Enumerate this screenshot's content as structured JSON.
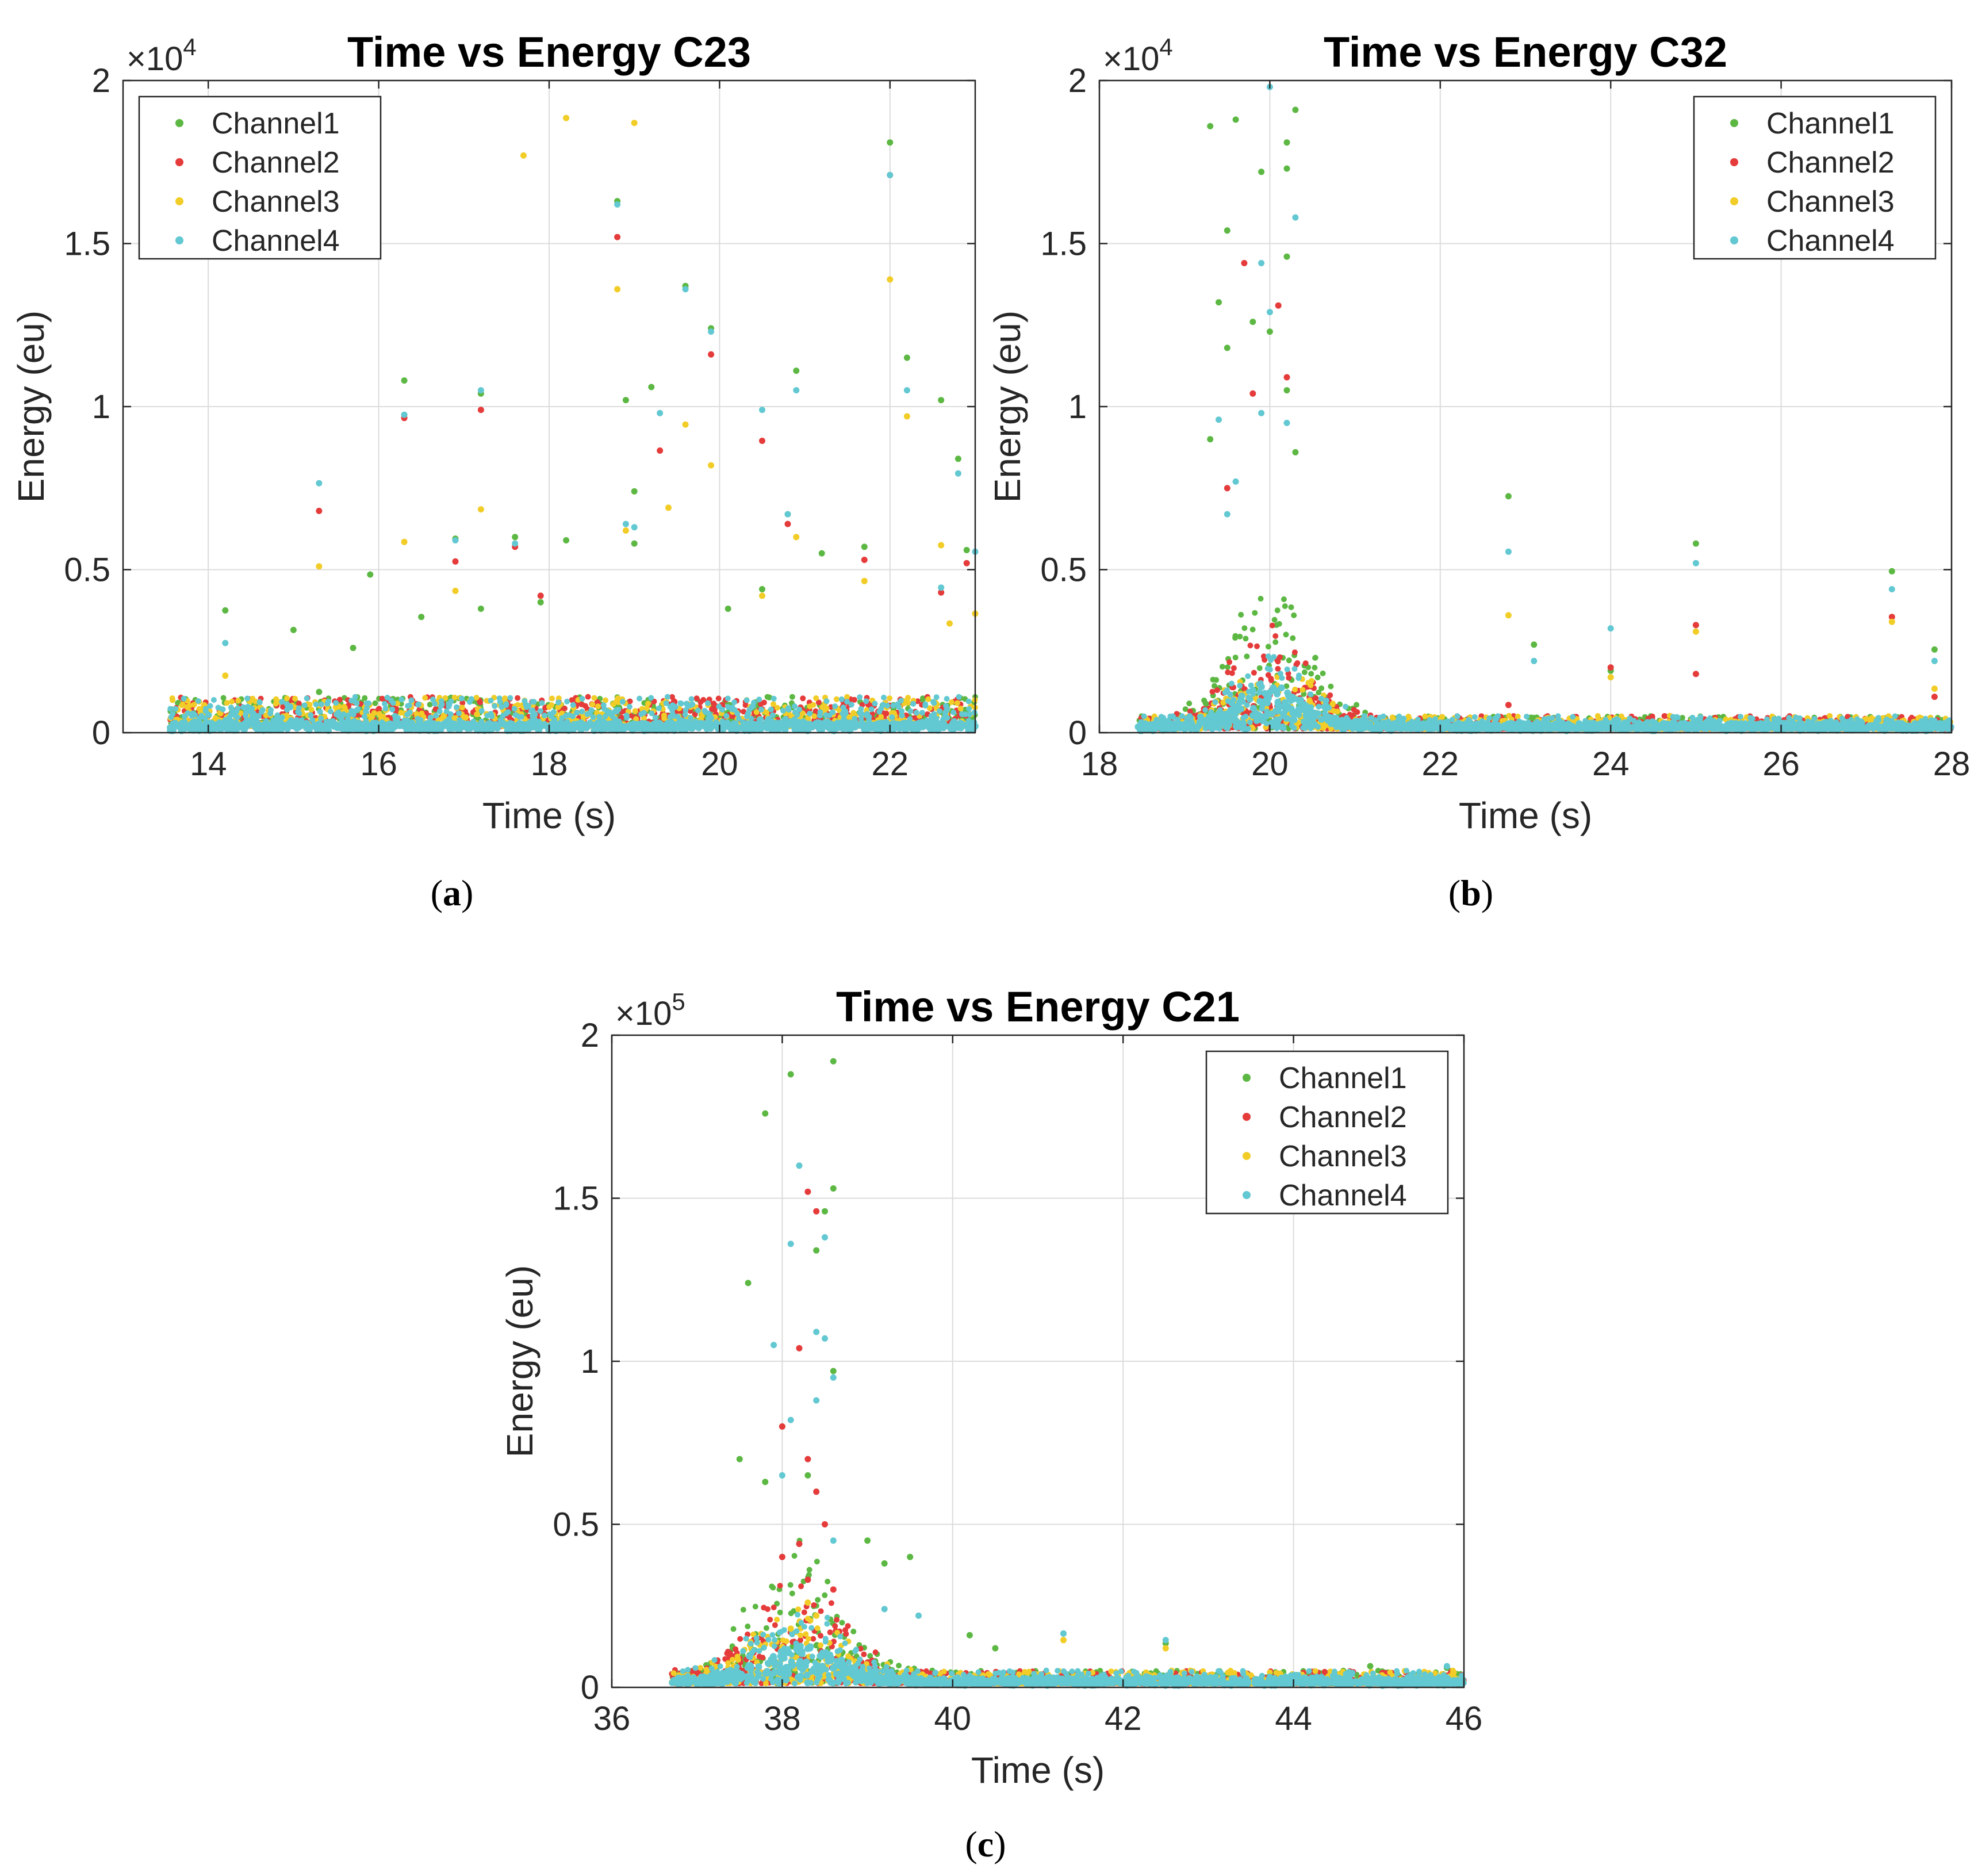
{
  "figure": {
    "panels": [
      {
        "id": "a",
        "caption": "(a)",
        "caption_letter": "a",
        "exponent_label": "×10",
        "exponent_power": "4"
      },
      {
        "id": "b",
        "caption": "(b)",
        "caption_letter": "b",
        "exponent_label": "×10",
        "exponent_power": "4"
      },
      {
        "id": "c",
        "caption": "(c)",
        "caption_letter": "c",
        "exponent_label": "×10",
        "exponent_power": "5"
      }
    ]
  },
  "chart_data": [
    {
      "type": "scatter",
      "title": "Time vs Energy C23",
      "xlabel": "Time (s)",
      "ylabel": "Energy (eu)",
      "xlim": [
        13,
        23
      ],
      "ylim": [
        0,
        20000
      ],
      "xticks": [
        14,
        16,
        18,
        20,
        22
      ],
      "xtick_labels": [
        "14",
        "16",
        "18",
        "20",
        "22"
      ],
      "yticks": [
        0,
        5000,
        10000,
        15000,
        20000
      ],
      "ytick_labels": [
        "0",
        "0.5",
        "1",
        "1.5",
        "2"
      ],
      "y_multiplier": "×10^4",
      "grid": true,
      "legend_position": "top-left",
      "series": [
        {
          "name": "Channel1",
          "color": "#5cb843",
          "points": [
            [
              14.2,
              3750
            ],
            [
              15.0,
              3150
            ],
            [
              15.3,
              1250
            ],
            [
              15.7,
              2600
            ],
            [
              15.9,
              4850
            ],
            [
              16.3,
              10800
            ],
            [
              16.5,
              3550
            ],
            [
              16.9,
              5950
            ],
            [
              17.2,
              3800
            ],
            [
              17.2,
              10400
            ],
            [
              17.6,
              6000
            ],
            [
              17.9,
              4000
            ],
            [
              18.2,
              5900
            ],
            [
              18.8,
              16300
            ],
            [
              18.9,
              10200
            ],
            [
              19.0,
              7400
            ],
            [
              19.0,
              5800
            ],
            [
              19.2,
              10600
            ],
            [
              19.6,
              13700
            ],
            [
              19.9,
              12400
            ],
            [
              20.1,
              3800
            ],
            [
              20.5,
              4400
            ],
            [
              20.8,
              6700
            ],
            [
              20.9,
              11100
            ],
            [
              21.2,
              5500
            ],
            [
              21.7,
              5700
            ],
            [
              22.0,
              18100
            ],
            [
              22.2,
              11500
            ],
            [
              22.6,
              10200
            ],
            [
              22.8,
              8400
            ],
            [
              22.9,
              5600
            ]
          ]
        },
        {
          "name": "Channel2",
          "color": "#e53b3b",
          "points": [
            [
              15.3,
              6800
            ],
            [
              16.3,
              9650
            ],
            [
              16.9,
              5250
            ],
            [
              17.2,
              9900
            ],
            [
              17.6,
              5700
            ],
            [
              17.9,
              4200
            ],
            [
              18.8,
              15200
            ],
            [
              19.3,
              8650
            ],
            [
              19.9,
              11600
            ],
            [
              20.5,
              8950
            ],
            [
              20.8,
              6400
            ],
            [
              21.7,
              5300
            ],
            [
              22.0,
              17100
            ],
            [
              22.6,
              4300
            ],
            [
              22.9,
              5200
            ]
          ]
        },
        {
          "name": "Channel3",
          "color": "#f2cd27",
          "points": [
            [
              14.2,
              1750
            ],
            [
              15.3,
              5100
            ],
            [
              16.3,
              5850
            ],
            [
              16.9,
              4350
            ],
            [
              17.2,
              6850
            ],
            [
              17.7,
              17700
            ],
            [
              18.2,
              18850
            ],
            [
              18.8,
              13600
            ],
            [
              18.9,
              6200
            ],
            [
              19.0,
              18700
            ],
            [
              19.4,
              6900
            ],
            [
              19.6,
              9450
            ],
            [
              19.9,
              8200
            ],
            [
              20.5,
              4200
            ],
            [
              20.9,
              6000
            ],
            [
              21.7,
              4650
            ],
            [
              22.0,
              13900
            ],
            [
              22.2,
              9700
            ],
            [
              22.6,
              5750
            ],
            [
              22.7,
              3350
            ],
            [
              23.0,
              3650
            ]
          ]
        },
        {
          "name": "Channel4",
          "color": "#62c8d2",
          "points": [
            [
              14.2,
              2750
            ],
            [
              15.3,
              7650
            ],
            [
              16.3,
              9750
            ],
            [
              16.9,
              5900
            ],
            [
              17.2,
              10500
            ],
            [
              17.6,
              5800
            ],
            [
              18.8,
              16200
            ],
            [
              18.9,
              6400
            ],
            [
              19.0,
              6300
            ],
            [
              19.3,
              9800
            ],
            [
              19.6,
              13600
            ],
            [
              19.9,
              12300
            ],
            [
              20.5,
              9900
            ],
            [
              20.8,
              6700
            ],
            [
              20.9,
              10500
            ],
            [
              22.0,
              17100
            ],
            [
              22.2,
              10500
            ],
            [
              22.6,
              4450
            ],
            [
              22.8,
              7950
            ],
            [
              23.0,
              5550
            ]
          ]
        }
      ]
    },
    {
      "type": "scatter",
      "title": "Time vs Energy C32",
      "xlabel": "Time (s)",
      "ylabel": "Energy (eu)",
      "xlim": [
        18,
        28
      ],
      "ylim": [
        0,
        20000
      ],
      "xticks": [
        18,
        20,
        22,
        24,
        26,
        28
      ],
      "xtick_labels": [
        "18",
        "20",
        "22",
        "24",
        "26",
        "28"
      ],
      "yticks": [
        0,
        5000,
        10000,
        15000,
        20000
      ],
      "ytick_labels": [
        "0",
        "0.5",
        "1",
        "1.5",
        "2"
      ],
      "y_multiplier": "×10^4",
      "grid": true,
      "legend_position": "top-right",
      "series": [
        {
          "name": "Channel1",
          "color": "#5cb843",
          "points": [
            [
              19.3,
              18600
            ],
            [
              19.6,
              18800
            ],
            [
              19.9,
              17200
            ],
            [
              20.2,
              18100
            ],
            [
              20.3,
              19100
            ],
            [
              20.2,
              17300
            ],
            [
              19.5,
              15400
            ],
            [
              20.2,
              14600
            ],
            [
              19.4,
              13200
            ],
            [
              19.5,
              11800
            ],
            [
              19.8,
              12600
            ],
            [
              20.0,
              12300
            ],
            [
              20.2,
              10500
            ],
            [
              19.3,
              9000
            ],
            [
              20.3,
              8600
            ],
            [
              22.8,
              7250
            ],
            [
              25.0,
              5800
            ],
            [
              27.3,
              4950
            ],
            [
              27.8,
              2550
            ],
            [
              23.1,
              2700
            ],
            [
              24.0,
              1900
            ]
          ]
        },
        {
          "name": "Channel2",
          "color": "#e53b3b",
          "points": [
            [
              19.7,
              14400
            ],
            [
              20.1,
              13100
            ],
            [
              20.2,
              10900
            ],
            [
              19.8,
              10400
            ],
            [
              19.5,
              7500
            ],
            [
              25.0,
              3300
            ],
            [
              27.3,
              3550
            ],
            [
              24.0,
              2000
            ],
            [
              25.0,
              1800
            ],
            [
              22.8,
              850
            ],
            [
              27.8,
              1100
            ]
          ]
        },
        {
          "name": "Channel3",
          "color": "#f2cd27",
          "points": [
            [
              22.8,
              3600
            ],
            [
              25.0,
              3100
            ],
            [
              27.3,
              3400
            ],
            [
              24.0,
              1700
            ],
            [
              27.8,
              1350
            ]
          ]
        },
        {
          "name": "Channel4",
          "color": "#62c8d2",
          "points": [
            [
              20.0,
              19800
            ],
            [
              20.3,
              15800
            ],
            [
              19.9,
              14400
            ],
            [
              20.0,
              12900
            ],
            [
              19.4,
              9600
            ],
            [
              19.9,
              9800
            ],
            [
              20.2,
              9500
            ],
            [
              19.6,
              7700
            ],
            [
              19.5,
              6700
            ],
            [
              22.8,
              5550
            ],
            [
              25.0,
              5200
            ],
            [
              27.3,
              4400
            ],
            [
              24.0,
              3200
            ],
            [
              27.8,
              2200
            ],
            [
              23.1,
              2200
            ]
          ]
        }
      ]
    },
    {
      "type": "scatter",
      "title": "Time vs Energy C21",
      "xlabel": "Time (s)",
      "ylabel": "Energy (eu)",
      "xlim": [
        36,
        46
      ],
      "ylim": [
        0,
        200000
      ],
      "xticks": [
        36,
        38,
        40,
        42,
        44,
        46
      ],
      "xtick_labels": [
        "36",
        "38",
        "40",
        "42",
        "44",
        "46"
      ],
      "yticks": [
        0,
        50000,
        100000,
        150000,
        200000
      ],
      "ytick_labels": [
        "0",
        "0.5",
        "1",
        "1.5",
        "2"
      ],
      "y_multiplier": "×10^5",
      "grid": true,
      "legend_position": "top-right",
      "series": [
        {
          "name": "Channel1",
          "color": "#5cb843",
          "points": [
            [
              38.1,
              188000
            ],
            [
              38.6,
              192000
            ],
            [
              37.8,
              176000
            ],
            [
              38.6,
              153000
            ],
            [
              38.5,
              146000
            ],
            [
              38.4,
              134000
            ],
            [
              37.6,
              124000
            ],
            [
              38.6,
              97000
            ],
            [
              38.0,
              80000
            ],
            [
              37.5,
              70000
            ],
            [
              38.3,
              65000
            ],
            [
              37.8,
              63000
            ],
            [
              39.0,
              45000
            ],
            [
              39.5,
              40000
            ],
            [
              39.2,
              38000
            ],
            [
              40.2,
              16000
            ],
            [
              40.5,
              12000
            ],
            [
              41.3,
              16500
            ],
            [
              42.5,
              13500
            ],
            [
              44.9,
              6500
            ],
            [
              45.8,
              6000
            ]
          ]
        },
        {
          "name": "Channel2",
          "color": "#e53b3b",
          "points": [
            [
              38.3,
              152000
            ],
            [
              38.4,
              146000
            ],
            [
              38.2,
              104000
            ],
            [
              38.0,
              80000
            ],
            [
              38.3,
              70000
            ],
            [
              38.4,
              60000
            ],
            [
              38.5,
              50000
            ],
            [
              38.2,
              44000
            ],
            [
              38.0,
              40000
            ],
            [
              38.3,
              33000
            ],
            [
              38.6,
              30000
            ]
          ]
        },
        {
          "name": "Channel3",
          "color": "#f2cd27",
          "points": [
            [
              38.3,
              26000
            ],
            [
              38.4,
              22000
            ],
            [
              38.1,
              18000
            ],
            [
              41.3,
              14500
            ],
            [
              42.5,
              12000
            ]
          ]
        },
        {
          "name": "Channel4",
          "color": "#62c8d2",
          "points": [
            [
              38.2,
              160000
            ],
            [
              38.1,
              136000
            ],
            [
              38.5,
              138000
            ],
            [
              38.4,
              109000
            ],
            [
              38.5,
              107000
            ],
            [
              37.9,
              105000
            ],
            [
              38.6,
              95000
            ],
            [
              38.4,
              88000
            ],
            [
              38.1,
              82000
            ],
            [
              38.0,
              65000
            ],
            [
              38.6,
              45000
            ],
            [
              39.2,
              24000
            ],
            [
              39.6,
              22000
            ],
            [
              41.3,
              16500
            ],
            [
              42.5,
              14500
            ],
            [
              45.8,
              6500
            ]
          ]
        }
      ]
    }
  ]
}
